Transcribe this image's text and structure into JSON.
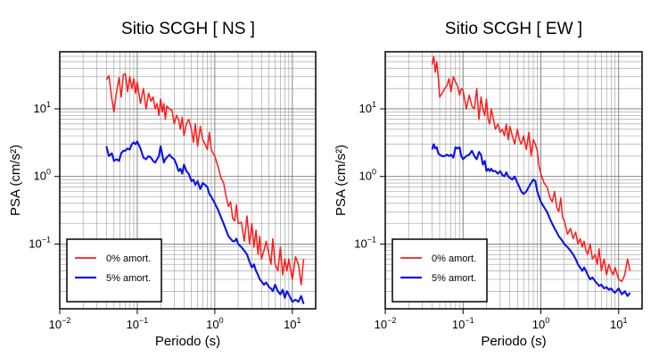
{
  "chart_data": [
    {
      "type": "line",
      "title": "Sitio SCGH [ NS ]",
      "xlabel": "Periodo (s)",
      "ylabel": "PSA (cm/s²)",
      "xscale": "log",
      "yscale": "log",
      "xlim": [
        0.01,
        20
      ],
      "ylim": [
        0.011,
        70
      ],
      "grid": true,
      "legend_position": "bottom-left",
      "x_ticks": [
        {
          "value": 0.01,
          "base": "10",
          "exp": "−2"
        },
        {
          "value": 0.1,
          "base": "10",
          "exp": "−1"
        },
        {
          "value": 1,
          "base": "10",
          "exp": "0"
        },
        {
          "value": 10,
          "base": "10",
          "exp": "1"
        }
      ],
      "y_ticks": [
        {
          "value": 0.1,
          "base": "10",
          "exp": "−1"
        },
        {
          "value": 1,
          "base": "10",
          "exp": "0"
        },
        {
          "value": 10,
          "base": "10",
          "exp": "1"
        }
      ],
      "series": [
        {
          "name": "0% amort.",
          "color": "#ff1a1a",
          "x": [
            0.04,
            0.043,
            0.047,
            0.05,
            0.054,
            0.058,
            0.062,
            0.066,
            0.07,
            0.075,
            0.08,
            0.085,
            0.09,
            0.095,
            0.1,
            0.11,
            0.12,
            0.13,
            0.14,
            0.15,
            0.16,
            0.17,
            0.18,
            0.19,
            0.2,
            0.21,
            0.22,
            0.23,
            0.24,
            0.26,
            0.28,
            0.3,
            0.32,
            0.34,
            0.36,
            0.38,
            0.4,
            0.43,
            0.46,
            0.5,
            0.53,
            0.56,
            0.6,
            0.65,
            0.7,
            0.75,
            0.8,
            0.85,
            0.9,
            0.95,
            1.0,
            1.1,
            1.2,
            1.3,
            1.4,
            1.5,
            1.6,
            1.7,
            1.8,
            1.9,
            2.0,
            2.2,
            2.4,
            2.6,
            2.8,
            3.0,
            3.2,
            3.4,
            3.6,
            3.8,
            4.0,
            4.3,
            4.6,
            5.0,
            5.3,
            5.6,
            6.0,
            6.5,
            7.0,
            7.5,
            8.0,
            8.5,
            9.0,
            10.0,
            11.0,
            12.0,
            13.0,
            14.0
          ],
          "y": [
            27,
            31,
            14,
            9,
            18,
            29,
            15,
            32,
            33,
            18,
            30,
            20,
            28,
            17,
            25,
            12,
            20,
            10,
            17,
            13,
            15,
            10,
            12,
            8,
            14,
            9,
            12,
            7,
            11,
            10,
            9.5,
            6,
            8,
            7,
            5,
            7.5,
            4,
            6,
            7,
            5,
            3.2,
            6,
            2.8,
            5.5,
            3.5,
            3,
            2.5,
            4.5,
            2.5,
            2.2,
            2.0,
            1.4,
            0.95,
            0.8,
            0.5,
            0.36,
            0.42,
            0.24,
            0.22,
            0.38,
            0.2,
            0.21,
            0.11,
            0.26,
            0.1,
            0.2,
            0.09,
            0.16,
            0.07,
            0.13,
            0.06,
            0.08,
            0.11,
            0.07,
            0.05,
            0.12,
            0.05,
            0.04,
            0.09,
            0.035,
            0.06,
            0.04,
            0.06,
            0.03,
            0.065,
            0.05,
            0.025,
            0.06
          ]
        },
        {
          "name": "5% amort.",
          "color": "#0b14e6",
          "x": [
            0.04,
            0.043,
            0.047,
            0.05,
            0.054,
            0.058,
            0.062,
            0.066,
            0.07,
            0.075,
            0.08,
            0.085,
            0.09,
            0.095,
            0.1,
            0.11,
            0.12,
            0.13,
            0.14,
            0.15,
            0.16,
            0.17,
            0.18,
            0.19,
            0.2,
            0.21,
            0.22,
            0.23,
            0.24,
            0.26,
            0.28,
            0.3,
            0.32,
            0.34,
            0.36,
            0.38,
            0.4,
            0.43,
            0.46,
            0.5,
            0.53,
            0.56,
            0.6,
            0.65,
            0.7,
            0.75,
            0.8,
            0.85,
            0.9,
            0.95,
            1.0,
            1.1,
            1.2,
            1.3,
            1.4,
            1.5,
            1.6,
            1.7,
            1.8,
            1.9,
            2.0,
            2.2,
            2.4,
            2.6,
            2.8,
            3.0,
            3.2,
            3.4,
            3.6,
            3.8,
            4.0,
            4.3,
            4.6,
            5.0,
            5.3,
            5.6,
            6.0,
            6.5,
            7.0,
            7.5,
            8.0,
            8.5,
            9.0,
            10.0,
            11.0,
            12.0,
            13.0,
            14.0
          ],
          "y": [
            2.8,
            2.0,
            2.2,
            1.7,
            1.8,
            1.7,
            2.2,
            2.4,
            2.4,
            2.6,
            2.5,
            3.0,
            3.2,
            3.0,
            3.3,
            2.6,
            1.9,
            1.8,
            2.0,
            1.9,
            1.7,
            1.6,
            1.8,
            2.0,
            2.8,
            2.1,
            1.6,
            1.8,
            1.9,
            2.1,
            1.9,
            1.8,
            1.5,
            1.2,
            1.3,
            1.1,
            1.5,
            1.2,
            1.1,
            0.85,
            0.9,
            0.75,
            0.85,
            0.65,
            0.8,
            0.75,
            0.7,
            0.55,
            0.5,
            0.45,
            0.4,
            0.32,
            0.25,
            0.2,
            0.16,
            0.13,
            0.12,
            0.11,
            0.11,
            0.12,
            0.1,
            0.09,
            0.08,
            0.07,
            0.055,
            0.045,
            0.05,
            0.04,
            0.035,
            0.03,
            0.028,
            0.025,
            0.027,
            0.023,
            0.022,
            0.02,
            0.025,
            0.02,
            0.018,
            0.021,
            0.016,
            0.02,
            0.018,
            0.014,
            0.015,
            0.014,
            0.017,
            0.013
          ]
        }
      ]
    },
    {
      "type": "line",
      "title": "Sitio SCGH [ EW ]",
      "xlabel": "Periodo (s)",
      "ylabel": "PSA (cm/s²)",
      "xscale": "log",
      "yscale": "log",
      "xlim": [
        0.01,
        20
      ],
      "ylim": [
        0.011,
        70
      ],
      "grid": true,
      "legend_position": "bottom-left",
      "x_ticks": [
        {
          "value": 0.01,
          "base": "10",
          "exp": "−2"
        },
        {
          "value": 0.1,
          "base": "10",
          "exp": "−1"
        },
        {
          "value": 1,
          "base": "10",
          "exp": "0"
        },
        {
          "value": 10,
          "base": "10",
          "exp": "1"
        }
      ],
      "y_ticks": [
        {
          "value": 0.1,
          "base": "10",
          "exp": "−1"
        },
        {
          "value": 1,
          "base": "10",
          "exp": "0"
        },
        {
          "value": 10,
          "base": "10",
          "exp": "1"
        }
      ],
      "series": [
        {
          "name": "0% amort.",
          "color": "#ff1a1a",
          "x": [
            0.04,
            0.042,
            0.044,
            0.046,
            0.048,
            0.05,
            0.054,
            0.058,
            0.062,
            0.066,
            0.07,
            0.075,
            0.08,
            0.085,
            0.09,
            0.095,
            0.1,
            0.11,
            0.12,
            0.13,
            0.14,
            0.15,
            0.16,
            0.17,
            0.18,
            0.19,
            0.2,
            0.21,
            0.22,
            0.23,
            0.24,
            0.26,
            0.28,
            0.3,
            0.32,
            0.34,
            0.36,
            0.38,
            0.4,
            0.43,
            0.46,
            0.5,
            0.53,
            0.56,
            0.6,
            0.65,
            0.7,
            0.75,
            0.8,
            0.85,
            0.9,
            0.95,
            1.0,
            1.1,
            1.2,
            1.3,
            1.4,
            1.5,
            1.6,
            1.7,
            1.8,
            1.9,
            2.0,
            2.2,
            2.4,
            2.6,
            2.8,
            3.0,
            3.2,
            3.4,
            3.6,
            3.8,
            4.0,
            4.3,
            4.6,
            5.0,
            5.3,
            5.6,
            6.0,
            6.5,
            7.0,
            7.5,
            8.0,
            8.5,
            9.0,
            10.0,
            11.0,
            12.0,
            13.0,
            14.0
          ],
          "y": [
            45,
            60,
            35,
            50,
            30,
            15,
            17,
            20,
            22,
            28,
            18,
            30,
            25,
            22,
            16,
            20,
            19,
            10,
            16,
            11,
            10,
            20,
            7,
            15,
            10,
            8,
            14,
            7,
            6,
            10,
            8,
            5,
            6,
            4.5,
            5,
            4,
            6,
            3.5,
            5.5,
            4,
            3,
            5,
            3.5,
            3,
            4,
            2.5,
            4.5,
            2,
            3.5,
            3,
            2.4,
            1.4,
            1.1,
            0.8,
            0.7,
            0.5,
            0.42,
            0.6,
            0.35,
            0.3,
            0.48,
            0.25,
            0.22,
            0.14,
            0.17,
            0.12,
            0.15,
            0.1,
            0.12,
            0.09,
            0.11,
            0.08,
            0.07,
            0.1,
            0.06,
            0.07,
            0.05,
            0.085,
            0.04,
            0.06,
            0.035,
            0.05,
            0.04,
            0.035,
            0.045,
            0.03,
            0.028,
            0.035,
            0.06,
            0.04
          ]
        },
        {
          "name": "5% amort.",
          "color": "#0b14e6",
          "x": [
            0.04,
            0.042,
            0.044,
            0.046,
            0.048,
            0.05,
            0.054,
            0.058,
            0.062,
            0.066,
            0.07,
            0.075,
            0.08,
            0.085,
            0.09,
            0.095,
            0.1,
            0.11,
            0.12,
            0.13,
            0.14,
            0.15,
            0.16,
            0.17,
            0.18,
            0.19,
            0.2,
            0.21,
            0.22,
            0.23,
            0.24,
            0.26,
            0.28,
            0.3,
            0.32,
            0.34,
            0.36,
            0.38,
            0.4,
            0.43,
            0.46,
            0.5,
            0.53,
            0.56,
            0.6,
            0.65,
            0.7,
            0.75,
            0.8,
            0.85,
            0.9,
            0.95,
            1.0,
            1.1,
            1.2,
            1.3,
            1.4,
            1.5,
            1.6,
            1.7,
            1.8,
            1.9,
            2.0,
            2.2,
            2.4,
            2.6,
            2.8,
            3.0,
            3.2,
            3.4,
            3.6,
            3.8,
            4.0,
            4.3,
            4.6,
            5.0,
            5.3,
            5.6,
            6.0,
            6.5,
            7.0,
            7.5,
            8.0,
            8.5,
            9.0,
            10.0,
            11.0,
            12.0,
            13.0,
            14.0
          ],
          "y": [
            2.5,
            3.0,
            2.6,
            2.7,
            2.2,
            2.1,
            2.0,
            2.0,
            2.1,
            2.0,
            2.1,
            1.9,
            2.7,
            2.6,
            2.7,
            2.0,
            1.8,
            2.0,
            2.1,
            2.4,
            2.0,
            1.8,
            2.3,
            2.1,
            1.5,
            1.7,
            1.2,
            1.3,
            1.2,
            1.3,
            1.2,
            1.2,
            1.1,
            1.2,
            1.05,
            1.0,
            1.15,
            1.0,
            0.95,
            0.9,
            1.0,
            0.8,
            0.7,
            0.6,
            0.55,
            0.6,
            0.7,
            0.8,
            0.9,
            0.85,
            0.6,
            0.5,
            0.42,
            0.35,
            0.3,
            0.24,
            0.2,
            0.17,
            0.15,
            0.13,
            0.12,
            0.11,
            0.1,
            0.09,
            0.08,
            0.07,
            0.06,
            0.05,
            0.045,
            0.04,
            0.045,
            0.04,
            0.035,
            0.03,
            0.032,
            0.028,
            0.026,
            0.024,
            0.025,
            0.022,
            0.023,
            0.021,
            0.022,
            0.02,
            0.019,
            0.022,
            0.018,
            0.02,
            0.017,
            0.019
          ]
        }
      ]
    }
  ]
}
